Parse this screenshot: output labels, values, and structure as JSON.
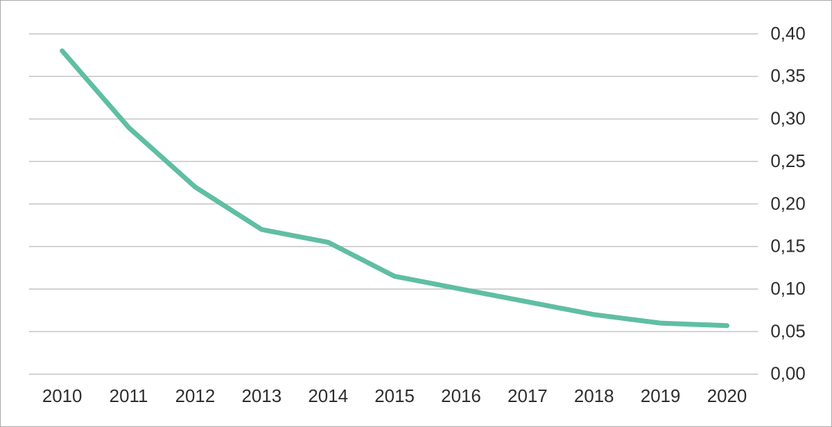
{
  "chart_data": {
    "type": "line",
    "title": "",
    "xlabel": "",
    "ylabel": "",
    "x": [
      "2010",
      "2011",
      "2012",
      "2013",
      "2014",
      "2015",
      "2016",
      "2017",
      "2018",
      "2019",
      "2020"
    ],
    "values": [
      0.38,
      0.29,
      0.22,
      0.17,
      0.155,
      0.115,
      0.1,
      0.085,
      0.07,
      0.06,
      0.057
    ],
    "ylim": [
      0,
      0.4
    ],
    "ytick_step": 0.05,
    "ytick_values": [
      0.4,
      0.35,
      0.3,
      0.25,
      0.2,
      0.15,
      0.1,
      0.05,
      0.0
    ],
    "ytick_labels": [
      "0,40",
      "0,35",
      "0,30",
      "0,25",
      "0,20",
      "0,15",
      "0,10",
      "0,05",
      "0,00"
    ],
    "decimal_separator": ",",
    "grid": "horizontal",
    "y_axis_side": "right",
    "legend": "none"
  },
  "colors": {
    "line": "#5fbea3",
    "gridline": "#c4c4c4",
    "text": "#2d2d2d",
    "background": "#ffffff",
    "frame_border": "#a9a9a9"
  }
}
